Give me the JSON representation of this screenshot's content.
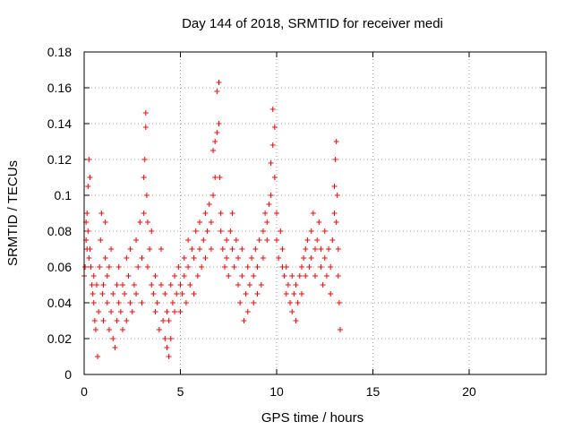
{
  "chart_data": {
    "type": "scatter",
    "title": "Day 144 of 2018, SRMTID for receiver medi",
    "xlabel": "GPS time / hours",
    "ylabel": "SRMTID / TECUs",
    "xlim": [
      0,
      24
    ],
    "ylim": [
      0,
      0.18
    ],
    "x_ticks": [
      0,
      5,
      10,
      15,
      20
    ],
    "x_tick_labels": [
      "0",
      "5",
      "10",
      "15",
      "20"
    ],
    "y_ticks": [
      0,
      0.02,
      0.04,
      0.06,
      0.08,
      0.1,
      0.12,
      0.14,
      0.16,
      0.18
    ],
    "y_tick_labels": [
      "0",
      "0.02",
      "0.04",
      "0.06",
      "0.08",
      "0.1",
      "0.12",
      "0.14",
      "0.16",
      "0.18"
    ],
    "grid": true,
    "marker": "+",
    "color": "#ff0000",
    "series": [
      {
        "name": "SRMTID",
        "x": [
          0.0,
          0.05,
          0.1,
          0.1,
          0.15,
          0.15,
          0.2,
          0.2,
          0.25,
          0.25,
          0.3,
          0.3,
          0.35,
          0.4,
          0.45,
          0.5,
          0.5,
          0.55,
          0.6,
          0.65,
          0.7,
          0.75,
          0.8,
          0.85,
          0.9,
          0.95,
          1.0,
          1.0,
          1.1,
          1.1,
          1.2,
          1.2,
          1.3,
          1.3,
          1.4,
          1.4,
          1.5,
          1.5,
          1.6,
          1.7,
          1.7,
          1.8,
          1.8,
          1.9,
          2.0,
          2.0,
          2.1,
          2.2,
          2.2,
          2.3,
          2.4,
          2.4,
          2.5,
          2.6,
          2.7,
          2.7,
          2.8,
          2.9,
          3.0,
          3.0,
          3.1,
          3.1,
          3.15,
          3.2,
          3.2,
          3.25,
          3.3,
          3.3,
          3.4,
          3.5,
          3.5,
          3.6,
          3.7,
          3.7,
          3.8,
          3.9,
          4.0,
          4.0,
          4.1,
          4.2,
          4.2,
          4.3,
          4.3,
          4.4,
          4.4,
          4.5,
          4.5,
          4.6,
          4.7,
          4.7,
          4.8,
          4.9,
          5.0,
          5.0,
          5.1,
          5.2,
          5.2,
          5.3,
          5.4,
          5.4,
          5.5,
          5.6,
          5.7,
          5.7,
          5.8,
          5.9,
          6.0,
          6.0,
          6.1,
          6.2,
          6.3,
          6.3,
          6.4,
          6.5,
          6.6,
          6.6,
          6.7,
          6.7,
          6.8,
          6.8,
          6.9,
          6.9,
          7.0,
          7.0,
          7.05,
          7.1,
          7.1,
          7.2,
          7.3,
          7.4,
          7.4,
          7.5,
          7.6,
          7.7,
          7.7,
          7.8,
          7.9,
          8.0,
          8.0,
          8.1,
          8.2,
          8.2,
          8.3,
          8.4,
          8.5,
          8.5,
          8.6,
          8.7,
          8.8,
          8.8,
          8.9,
          9.0,
          9.0,
          9.1,
          9.2,
          9.3,
          9.3,
          9.4,
          9.5,
          9.5,
          9.6,
          9.7,
          9.7,
          9.8,
          9.8,
          9.9,
          9.9,
          10.0,
          10.0,
          10.1,
          10.2,
          10.3,
          10.3,
          10.4,
          10.5,
          10.5,
          10.6,
          10.7,
          10.8,
          10.8,
          10.9,
          11.0,
          11.0,
          11.1,
          11.2,
          11.3,
          11.3,
          11.4,
          11.5,
          11.5,
          11.6,
          11.7,
          11.8,
          11.8,
          11.9,
          12.0,
          12.0,
          12.1,
          12.2,
          12.3,
          12.3,
          12.4,
          12.5,
          12.5,
          12.6,
          12.7,
          12.8,
          12.8,
          12.9,
          13.0,
          13.0,
          13.05,
          13.1,
          13.1,
          13.15,
          13.2,
          13.2,
          13.25,
          13.3
        ],
        "y": [
          0.055,
          0.06,
          0.075,
          0.085,
          0.07,
          0.09,
          0.105,
          0.08,
          0.12,
          0.065,
          0.11,
          0.07,
          0.06,
          0.05,
          0.045,
          0.055,
          0.04,
          0.03,
          0.025,
          0.05,
          0.01,
          0.035,
          0.06,
          0.075,
          0.09,
          0.045,
          0.03,
          0.05,
          0.065,
          0.085,
          0.04,
          0.055,
          0.025,
          0.06,
          0.035,
          0.07,
          0.02,
          0.045,
          0.015,
          0.05,
          0.03,
          0.04,
          0.06,
          0.035,
          0.025,
          0.05,
          0.045,
          0.065,
          0.03,
          0.055,
          0.04,
          0.07,
          0.035,
          0.05,
          0.045,
          0.075,
          0.06,
          0.085,
          0.04,
          0.065,
          0.09,
          0.11,
          0.12,
          0.138,
          0.146,
          0.1,
          0.085,
          0.06,
          0.07,
          0.05,
          0.08,
          0.045,
          0.035,
          0.055,
          0.04,
          0.025,
          0.05,
          0.07,
          0.03,
          0.02,
          0.045,
          0.015,
          0.035,
          0.01,
          0.03,
          0.05,
          0.02,
          0.04,
          0.055,
          0.035,
          0.045,
          0.06,
          0.05,
          0.035,
          0.045,
          0.055,
          0.065,
          0.04,
          0.06,
          0.075,
          0.05,
          0.07,
          0.045,
          0.065,
          0.08,
          0.055,
          0.07,
          0.085,
          0.06,
          0.075,
          0.09,
          0.065,
          0.08,
          0.095,
          0.07,
          0.085,
          0.1,
          0.125,
          0.11,
          0.13,
          0.135,
          0.158,
          0.163,
          0.14,
          0.11,
          0.09,
          0.08,
          0.07,
          0.06,
          0.075,
          0.065,
          0.055,
          0.08,
          0.07,
          0.09,
          0.06,
          0.075,
          0.05,
          0.065,
          0.04,
          0.055,
          0.07,
          0.03,
          0.045,
          0.06,
          0.035,
          0.05,
          0.065,
          0.04,
          0.055,
          0.07,
          0.045,
          0.06,
          0.075,
          0.05,
          0.065,
          0.08,
          0.09,
          0.075,
          0.085,
          0.095,
          0.1,
          0.118,
          0.128,
          0.148,
          0.138,
          0.11,
          0.09,
          0.075,
          0.065,
          0.08,
          0.06,
          0.07,
          0.055,
          0.045,
          0.06,
          0.05,
          0.04,
          0.055,
          0.035,
          0.045,
          0.03,
          0.05,
          0.04,
          0.055,
          0.06,
          0.045,
          0.065,
          0.07,
          0.055,
          0.075,
          0.06,
          0.08,
          0.065,
          0.09,
          0.07,
          0.055,
          0.075,
          0.085,
          0.06,
          0.07,
          0.05,
          0.065,
          0.08,
          0.055,
          0.07,
          0.045,
          0.06,
          0.075,
          0.09,
          0.105,
          0.12,
          0.13,
          0.085,
          0.1,
          0.07,
          0.055,
          0.04,
          0.025
        ]
      }
    ]
  }
}
